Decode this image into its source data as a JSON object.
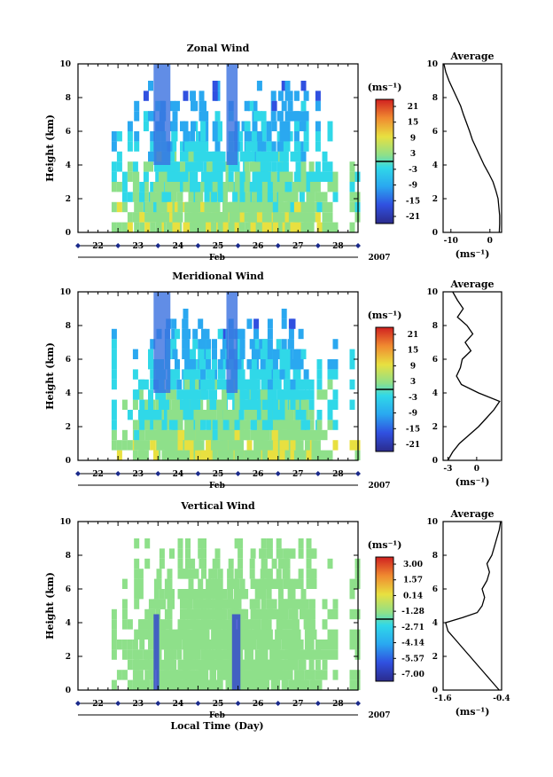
{
  "figure": {
    "xlabel": "Local Time (Day)",
    "month": "Feb",
    "year": "2007",
    "day_ticks": [
      "22",
      "23",
      "24",
      "25",
      "26",
      "27",
      "28"
    ]
  },
  "chart_data": [
    {
      "type": "heatmap",
      "title": "Zonal Wind",
      "ylabel": "Height (km)",
      "ylim": [
        0,
        10
      ],
      "yticks": [
        0,
        2,
        4,
        6,
        8,
        10
      ],
      "xlabel": "Local Time (Day)",
      "colorbar": {
        "unit": "(ms⁻¹)",
        "ticks": [
          "21",
          "15",
          "9",
          "3",
          "-3",
          "-9",
          "-15",
          "-21"
        ],
        "range": [
          -24,
          24
        ]
      },
      "profile": {
        "title": "Average",
        "xlabel": "(ms⁻¹)",
        "xticks": [
          "-10",
          "0"
        ],
        "xlim": [
          -12,
          3
        ],
        "heights": [
          0,
          0.5,
          1,
          1.5,
          2,
          2.5,
          3,
          3.5,
          4,
          4.5,
          5,
          5.5,
          6,
          6.5,
          7,
          7.5,
          8,
          8.5,
          9,
          9.5,
          10
        ],
        "values": [
          2.4,
          2.5,
          2.5,
          2.3,
          2.1,
          1.5,
          0.8,
          -0.3,
          -1.5,
          -2.5,
          -3.5,
          -4.5,
          -5.2,
          -6.0,
          -6.8,
          -7.5,
          -8.5,
          -9.5,
          -10.5,
          -11.3,
          -11.8
        ]
      }
    },
    {
      "type": "heatmap",
      "title": "Meridional Wind",
      "ylabel": "Height (km)",
      "ylim": [
        0,
        10
      ],
      "yticks": [
        0,
        2,
        4,
        6,
        8,
        10
      ],
      "xlabel": "Local Time (Day)",
      "colorbar": {
        "unit": "(ms⁻¹)",
        "ticks": [
          "21",
          "15",
          "9",
          "3",
          "-3",
          "-9",
          "-15",
          "-21"
        ],
        "range": [
          -24,
          24
        ]
      },
      "profile": {
        "title": "Average",
        "xlabel": "(ms⁻¹)",
        "xticks": [
          "-3",
          "0"
        ],
        "xlim": [
          -3.5,
          2.6
        ],
        "heights": [
          0,
          0.5,
          1,
          1.5,
          2,
          2.5,
          3,
          3.5,
          4,
          4.5,
          5,
          5.5,
          6,
          6.5,
          7,
          7.5,
          8,
          8.5,
          9,
          9.5,
          10
        ],
        "values": [
          -3.0,
          -2.5,
          -1.8,
          -0.8,
          0.2,
          1.0,
          1.8,
          2.4,
          0.2,
          -1.6,
          -2.1,
          -1.7,
          -1.5,
          -0.6,
          -1.2,
          -0.4,
          -1.0,
          -2.0,
          -1.4,
          -2.0,
          -2.5
        ]
      }
    },
    {
      "type": "heatmap",
      "title": "Vertical Wind",
      "ylabel": "Height (km)",
      "ylim": [
        0,
        10
      ],
      "yticks": [
        0,
        2,
        4,
        6,
        8,
        10
      ],
      "xlabel": "Local Time (Day)",
      "colorbar": {
        "unit": "(ms⁻¹)",
        "ticks": [
          "3.00",
          "1.57",
          "0.14",
          "-1.28",
          "-2.71",
          "-4.14",
          "-5.57",
          "-7.00"
        ],
        "range": [
          -7.7,
          3.7
        ]
      },
      "profile": {
        "title": "Average",
        "xlabel": "(ms⁻¹)",
        "xticks": [
          "-1.6",
          "-0.4"
        ],
        "xlim": [
          -1.6,
          -0.4
        ],
        "heights": [
          0,
          0.5,
          1,
          1.5,
          2,
          2.5,
          3,
          3.5,
          4,
          4.3,
          4.6,
          5,
          5.5,
          6,
          6.5,
          7,
          7.5,
          8,
          8.5,
          9,
          9.5,
          10
        ],
        "values": [
          -0.45,
          -0.6,
          -0.75,
          -0.9,
          -1.05,
          -1.2,
          -1.35,
          -1.5,
          -1.55,
          -1.2,
          -0.9,
          -0.8,
          -0.75,
          -0.8,
          -0.7,
          -0.65,
          -0.7,
          -0.6,
          -0.55,
          -0.5,
          -0.45,
          -0.42
        ]
      }
    }
  ]
}
